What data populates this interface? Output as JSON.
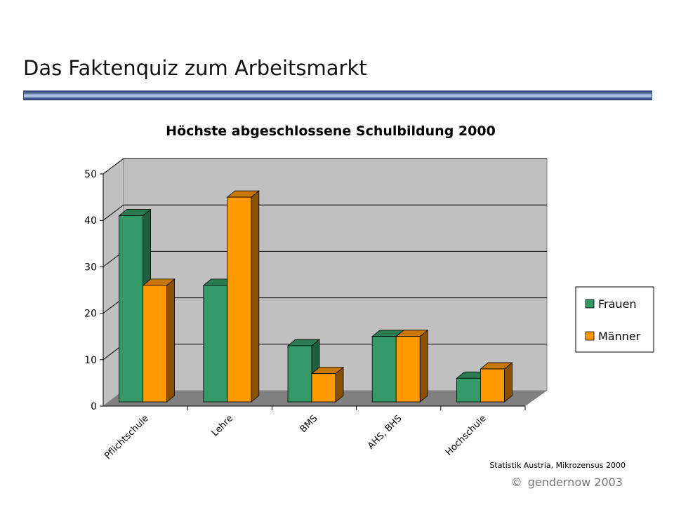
{
  "slide": {
    "title": "Das Faktenquiz zum Arbeitsmarkt",
    "credit": "gendernow 2003",
    "credit_symbol": "©"
  },
  "colors": {
    "frauen": "#339966",
    "frauen_side": "#1f5e3e",
    "frauen_top": "#2a7a52",
    "maenner": "#ff9900",
    "maenner_side": "#8a5200",
    "maenner_top": "#c87800",
    "wall": "#c0c0c0",
    "floor": "#808080"
  },
  "chart_data": {
    "type": "bar",
    "title": "Höchste abgeschlossene Schulbildung 2000",
    "categories": [
      "Pflichtschule",
      "Lehre",
      "BMS",
      "AHS, BHS",
      "Hochschule"
    ],
    "series": [
      {
        "name": "Frauen",
        "values": [
          41,
          26,
          13,
          15,
          6
        ]
      },
      {
        "name": "Männer",
        "values": [
          26,
          45,
          7,
          15,
          8
        ]
      }
    ],
    "ylim": [
      0,
      50
    ],
    "yticks": [
      0,
      10,
      20,
      30,
      40,
      50
    ],
    "grid": true,
    "legend": "right",
    "source": "Statistik Austria, Mikrozensus 2000"
  }
}
